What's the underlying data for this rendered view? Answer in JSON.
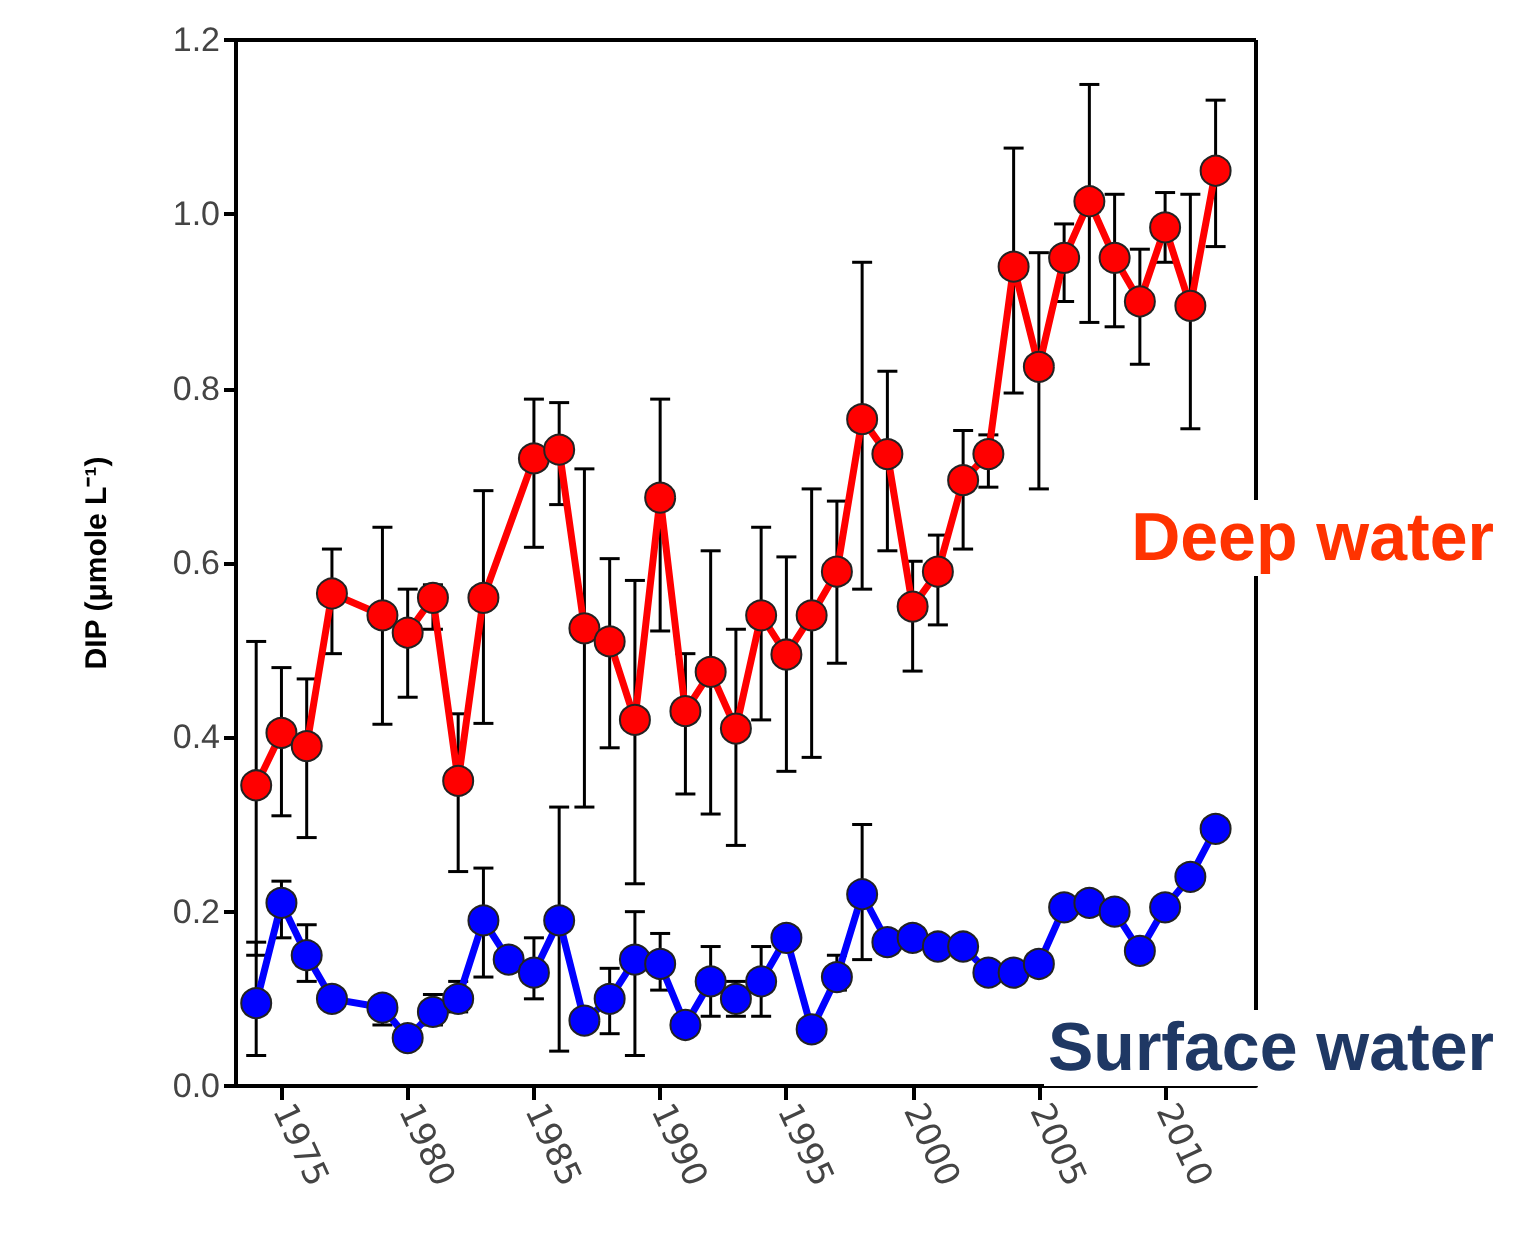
{
  "chart_data": {
    "type": "line",
    "ylabel": "DIP (μmole L⁻¹)",
    "xlim": [
      1973.2,
      2013.6
    ],
    "xticks": [
      1975,
      1980,
      1985,
      1990,
      1995,
      2000,
      2005,
      2010
    ],
    "ylim": [
      0,
      1.2
    ],
    "yticks": [
      {
        "value": 0,
        "label": "0.0"
      },
      {
        "value": 0.2,
        "label": "0.2"
      },
      {
        "value": 0.4,
        "label": "0.4"
      },
      {
        "value": 0.6,
        "label": "0.6"
      },
      {
        "value": 0.8,
        "label": "0.8"
      },
      {
        "value": 1,
        "label": "1.0"
      },
      {
        "value": 1.2,
        "label": "1.2"
      }
    ],
    "grid": false,
    "legend": false,
    "marker": "circle",
    "line_style": "solid",
    "series": [
      {
        "name": "Deep water",
        "color": "#ff0000",
        "x": [
          1974,
          1975,
          1976,
          1977,
          1979,
          1980,
          1981,
          1982,
          1983,
          1985,
          1986,
          1987,
          1988,
          1989,
          1990,
          1991,
          1992,
          1993,
          1994,
          1995,
          1996,
          1997,
          1998,
          1999,
          2000,
          2001,
          2002,
          2003,
          2004,
          2005,
          2006,
          2007,
          2008,
          2009,
          2010,
          2011,
          2012
        ],
        "values": [
          0.345,
          0.405,
          0.39,
          0.565,
          0.54,
          0.52,
          0.56,
          0.35,
          0.56,
          0.72,
          0.73,
          0.525,
          0.51,
          0.42,
          0.675,
          0.43,
          0.475,
          0.41,
          0.54,
          0.495,
          0.54,
          0.59,
          0.765,
          0.725,
          0.55,
          0.59,
          0.695,
          0.725,
          0.94,
          0.825,
          0.95,
          1.015,
          0.95,
          0.9,
          0.985,
          0.895,
          1.05
        ],
        "errors": [
          [
            0.15,
            0.51
          ],
          [
            0.31,
            0.48
          ],
          [
            0.285,
            0.467
          ],
          [
            0.496,
            0.616
          ],
          [
            0.415,
            0.641
          ],
          [
            0.446,
            0.57
          ],
          [
            0.524,
            0.575
          ],
          [
            0.246,
            0.427
          ],
          [
            0.416,
            0.683
          ],
          [
            0.618,
            0.788
          ],
          [
            0.667,
            0.784
          ],
          [
            0.32,
            0.708
          ],
          [
            0.388,
            0.605
          ],
          [
            0.232,
            0.58
          ],
          [
            0.522,
            0.788
          ],
          [
            0.335,
            0.496
          ],
          [
            0.312,
            0.614
          ],
          [
            0.276,
            0.524
          ],
          [
            0.42,
            0.641
          ],
          [
            0.361,
            0.607
          ],
          [
            0.377,
            0.685
          ],
          [
            0.485,
            0.671
          ],
          [
            0.57,
            0.945
          ],
          [
            0.614,
            0.82
          ],
          [
            0.476,
            0.602
          ],
          [
            0.529,
            0.632
          ],
          [
            0.616,
            0.752
          ],
          [
            0.687,
            0.747
          ],
          [
            0.795,
            1.076
          ],
          [
            0.685,
            0.956
          ],
          [
            0.9,
            0.989
          ],
          [
            0.876,
            1.149
          ],
          [
            0.871,
            1.023
          ],
          [
            0.828,
            0.96
          ],
          [
            0.945,
            1.025
          ],
          [
            0.754,
            1.023
          ],
          [
            0.963,
            1.131
          ]
        ]
      },
      {
        "name": "Surface water",
        "color": "#0000ff",
        "x": [
          1974,
          1975,
          1976,
          1977,
          1979,
          1980,
          1981,
          1982,
          1983,
          1984,
          1985,
          1986,
          1987,
          1988,
          1989,
          1990,
          1991,
          1992,
          1993,
          1994,
          1995,
          1996,
          1997,
          1998,
          1999,
          2000,
          2001,
          2002,
          2003,
          2004,
          2005,
          2006,
          2007,
          2008,
          2009,
          2010,
          2011,
          2012
        ],
        "values": [
          0.095,
          0.21,
          0.15,
          0.1,
          0.09,
          0.055,
          0.085,
          0.1,
          0.19,
          0.145,
          0.13,
          0.19,
          0.075,
          0.1,
          0.145,
          0.14,
          0.07,
          0.12,
          0.1,
          0.12,
          0.17,
          0.065,
          0.125,
          0.22,
          0.165,
          0.17,
          0.16,
          0.16,
          0.13,
          0.13,
          0.14,
          0.205,
          0.21,
          0.2,
          0.155,
          0.205,
          0.24,
          0.295
        ],
        "errors": [
          [
            0.035,
            0.165
          ],
          [
            0.17,
            0.235
          ],
          [
            0.12,
            0.185
          ],
          null,
          [
            0.07,
            0.1
          ],
          null,
          [
            0.07,
            0.105
          ],
          [
            0.085,
            0.12
          ],
          [
            0.125,
            0.25
          ],
          null,
          [
            0.1,
            0.17
          ],
          [
            0.04,
            0.32
          ],
          null,
          [
            0.06,
            0.135
          ],
          [
            0.035,
            0.2
          ],
          [
            0.11,
            0.175
          ],
          null,
          [
            0.08,
            0.16
          ],
          [
            0.08,
            0.12
          ],
          [
            0.08,
            0.16
          ],
          null,
          null,
          [
            0.11,
            0.15
          ],
          [
            0.145,
            0.3
          ],
          null,
          null,
          null,
          null,
          null,
          null,
          null,
          null,
          null,
          null,
          null,
          null,
          null,
          null
        ]
      }
    ]
  }
}
